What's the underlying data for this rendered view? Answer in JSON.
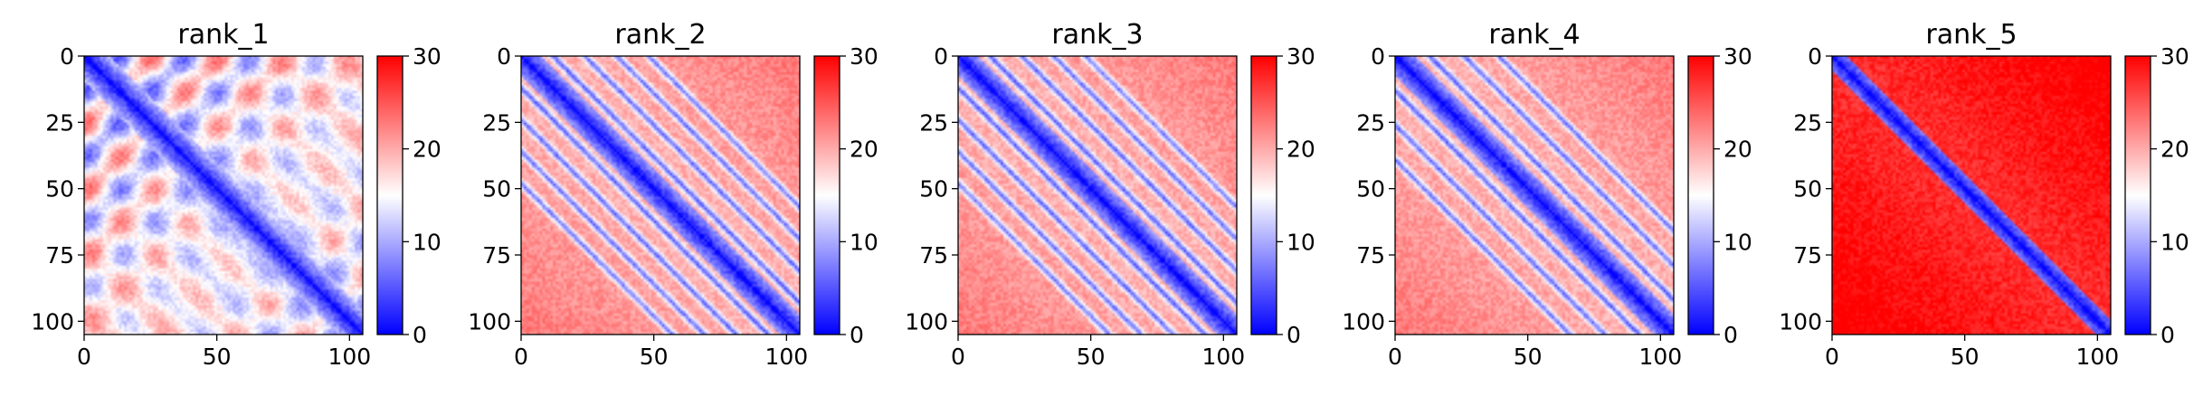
{
  "chart_data": [
    {
      "type": "heatmap",
      "title": "rank_1",
      "x_ticks": [
        "0",
        "50",
        "100"
      ],
      "y_ticks": [
        "0",
        "25",
        "50",
        "75",
        "100"
      ],
      "xlim": [
        0,
        105
      ],
      "ylim": [
        105,
        0
      ],
      "matrix_size": 105,
      "colorbar": {
        "min": 0,
        "max": 30,
        "ticks": [
          "0",
          "10",
          "20",
          "30"
        ],
        "colormap": "bwr"
      },
      "pattern": {
        "diagonal_bands": [],
        "block_period": 24,
        "block_strength": 0.95,
        "base": 18,
        "near_width": 9
      }
    },
    {
      "type": "heatmap",
      "title": "rank_2",
      "x_ticks": [
        "0",
        "50",
        "100"
      ],
      "y_ticks": [
        "0",
        "25",
        "50",
        "75",
        "100"
      ],
      "xlim": [
        0,
        105
      ],
      "ylim": [
        105,
        0
      ],
      "matrix_size": 105,
      "colorbar": {
        "min": 0,
        "max": 30,
        "ticks": [
          "0",
          "10",
          "20",
          "30"
        ],
        "colormap": "bwr"
      },
      "pattern": {
        "diagonal_bands": [
          12,
          24,
          36,
          48
        ],
        "block_period": 0,
        "block_strength": 0,
        "base": 19,
        "near_width": 7
      }
    },
    {
      "type": "heatmap",
      "title": "rank_3",
      "x_ticks": [
        "0",
        "50",
        "100"
      ],
      "y_ticks": [
        "0",
        "25",
        "50",
        "75",
        "100"
      ],
      "xlim": [
        0,
        105
      ],
      "ylim": [
        105,
        0
      ],
      "matrix_size": 105,
      "colorbar": {
        "min": 0,
        "max": 30,
        "ticks": [
          "0",
          "10",
          "20",
          "30"
        ],
        "colormap": "bwr"
      },
      "pattern": {
        "diagonal_bands": [
          12,
          24,
          36,
          48
        ],
        "block_period": 0,
        "block_strength": 0,
        "base": 19,
        "near_width": 7
      }
    },
    {
      "type": "heatmap",
      "title": "rank_4",
      "x_ticks": [
        "0",
        "50",
        "100"
      ],
      "y_ticks": [
        "0",
        "25",
        "50",
        "75",
        "100"
      ],
      "xlim": [
        0,
        105
      ],
      "ylim": [
        105,
        0
      ],
      "matrix_size": 105,
      "colorbar": {
        "min": 0,
        "max": 30,
        "ticks": [
          "0",
          "10",
          "20",
          "30"
        ],
        "colormap": "bwr"
      },
      "pattern": {
        "diagonal_bands": [
          13,
          26,
          39
        ],
        "block_period": 0,
        "block_strength": 0,
        "base": 19,
        "near_width": 7
      }
    },
    {
      "type": "heatmap",
      "title": "rank_5",
      "x_ticks": [
        "0",
        "50",
        "100"
      ],
      "y_ticks": [
        "0",
        "25",
        "50",
        "75",
        "100"
      ],
      "xlim": [
        0,
        105
      ],
      "ylim": [
        105,
        0
      ],
      "matrix_size": 105,
      "colorbar": {
        "min": 0,
        "max": 30,
        "ticks": [
          "0",
          "10",
          "20",
          "30"
        ],
        "colormap": "bwr"
      },
      "pattern": {
        "diagonal_bands": [],
        "block_period": 0,
        "block_strength": 0,
        "base": 27,
        "near_width": 5
      }
    }
  ]
}
